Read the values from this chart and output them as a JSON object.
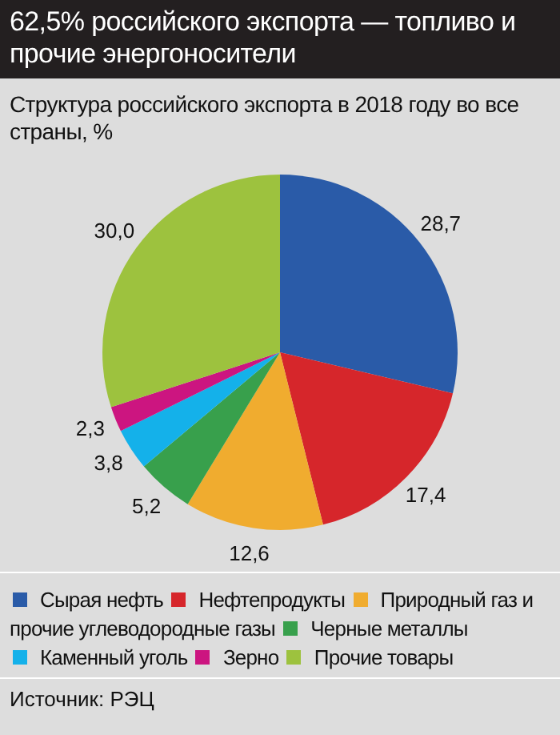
{
  "chart_data": {
    "type": "pie",
    "title": "62,5% российского экспорта — топливо и прочие энергоносители",
    "subtitle": "Структура российского экспорта в 2018 году во все страны, %",
    "categories": [
      "Сырая нефть",
      "Нефтепродукты",
      "Природный газ и прочие углеводородные газы",
      "Черные металлы",
      "Каменный уголь",
      "Зерно",
      "Прочие товары"
    ],
    "values": [
      28.7,
      17.4,
      12.6,
      5.2,
      3.8,
      2.3,
      30.0
    ],
    "value_labels": [
      "28,7",
      "17,4",
      "12,6",
      "5,2",
      "3,8",
      "2,3",
      "30,0"
    ],
    "colors": [
      "#2a5ba8",
      "#d6262b",
      "#f0ac2f",
      "#38a04c",
      "#14b1ea",
      "#cc1580",
      "#9dc23e"
    ],
    "legend": "bottom",
    "annotations": [
      "Источник: РЭЦ"
    ]
  }
}
